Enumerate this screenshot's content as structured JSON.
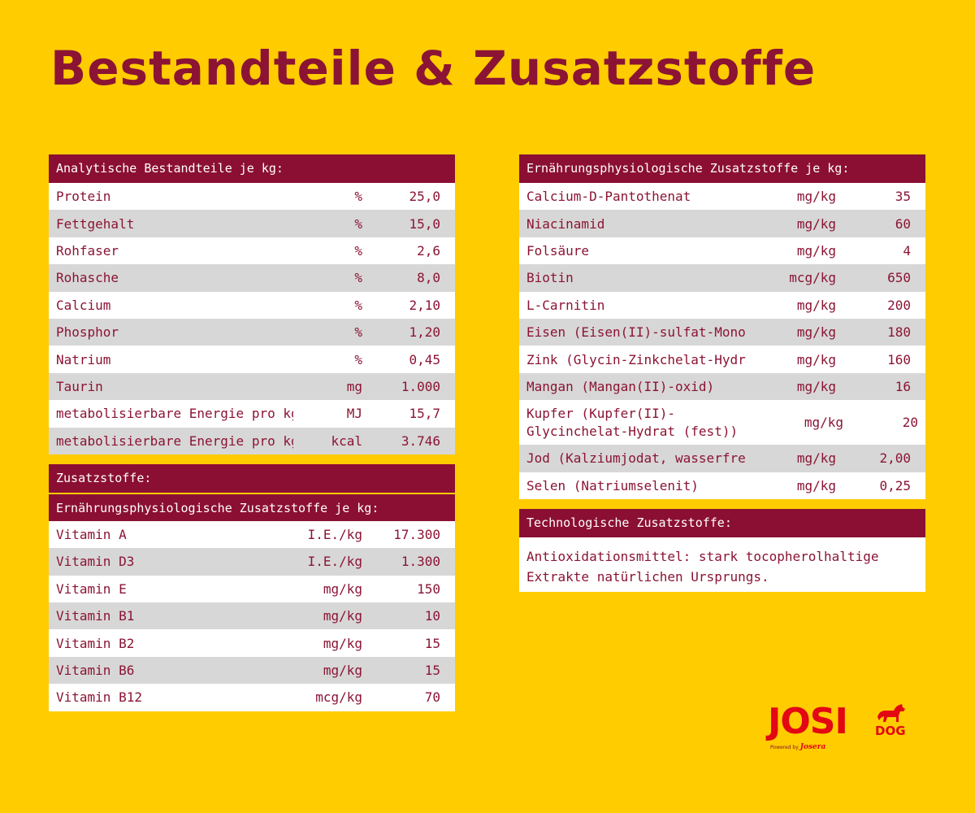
{
  "title": "Bestandteile & Zusatzstoffe",
  "analytic": {
    "header": "Analytische Bestandteile je kg:",
    "rows": [
      {
        "name": "Protein",
        "unit": "%",
        "value": "25,0"
      },
      {
        "name": "Fettgehalt",
        "unit": "%",
        "value": "15,0"
      },
      {
        "name": "Rohfaser",
        "unit": "%",
        "value": "2,6"
      },
      {
        "name": "Rohasche",
        "unit": "%",
        "value": "8,0"
      },
      {
        "name": "Calcium",
        "unit": "%",
        "value": "2,10"
      },
      {
        "name": "Phosphor",
        "unit": "%",
        "value": "1,20"
      },
      {
        "name": "Natrium",
        "unit": "%",
        "value": "0,45"
      },
      {
        "name": "Taurin",
        "unit": "mg",
        "value": "1.000"
      },
      {
        "name": "metabolisierbare Energie pro kg",
        "unit": "MJ",
        "value": "15,7"
      },
      {
        "name": "metabolisierbare Energie pro kg",
        "unit": "kcal",
        "value": "3.746"
      }
    ]
  },
  "additives": {
    "header": "Zusatzstoffe:",
    "subheader": "Ernährungsphysiologische Zusatzstoffe je kg:",
    "rows": [
      {
        "name": "Vitamin A",
        "unit": "I.E./kg",
        "value": "17.300"
      },
      {
        "name": "Vitamin D3",
        "unit": "I.E./kg",
        "value": "1.300"
      },
      {
        "name": "Vitamin E",
        "unit": "mg/kg",
        "value": "150"
      },
      {
        "name": "Vitamin B1",
        "unit": "mg/kg",
        "value": "10"
      },
      {
        "name": "Vitamin B2",
        "unit": "mg/kg",
        "value": "15"
      },
      {
        "name": "Vitamin B6",
        "unit": "mg/kg",
        "value": "15"
      },
      {
        "name": "Vitamin B12",
        "unit": "mcg/kg",
        "value": "70"
      }
    ]
  },
  "nutritional": {
    "header": "Ernährungsphysiologische Zusatzstoffe je kg:",
    "rows": [
      {
        "name": "Calcium-D-Pantothenat",
        "unit": "mg/kg",
        "value": "35"
      },
      {
        "name": "Niacinamid",
        "unit": "mg/kg",
        "value": "60"
      },
      {
        "name": "Folsäure",
        "unit": "mg/kg",
        "value": "4"
      },
      {
        "name": "Biotin",
        "unit": "mcg/kg",
        "value": "650"
      },
      {
        "name": "L-Carnitin",
        "unit": "mg/kg",
        "value": "200"
      },
      {
        "name": "Eisen (Eisen(II)-sulfat-Monohydrat)",
        "unit": "mg/kg",
        "value": "180"
      },
      {
        "name": "Zink (Glycin-Zinkchelat-Hydrat (fest))",
        "unit": "mg/kg",
        "value": "160"
      },
      {
        "name": "Mangan (Mangan(II)-oxid)",
        "unit": "mg/kg",
        "value": "16"
      },
      {
        "name": "Kupfer (Kupfer(II)-Glycinchelat-Hydrat (fest))",
        "unit": "mg/kg",
        "value": "20"
      },
      {
        "name": "Jod (Kalziumjodat, wasserfrei)",
        "unit": "mg/kg",
        "value": "2,00"
      },
      {
        "name": "Selen (Natriumselenit)",
        "unit": "mg/kg",
        "value": "0,25"
      }
    ]
  },
  "technological": {
    "header": "Technologische Zusatzstoffe:",
    "text": "Antioxidationsmittel: stark tocopherolhaltige Extrakte natürlichen Ursprungs."
  },
  "logo": {
    "brand": "JOSI",
    "sub": "DOG",
    "powered": "Powered by",
    "maker": "Josera",
    "icon": "dog-icon",
    "color": "#e30613"
  }
}
